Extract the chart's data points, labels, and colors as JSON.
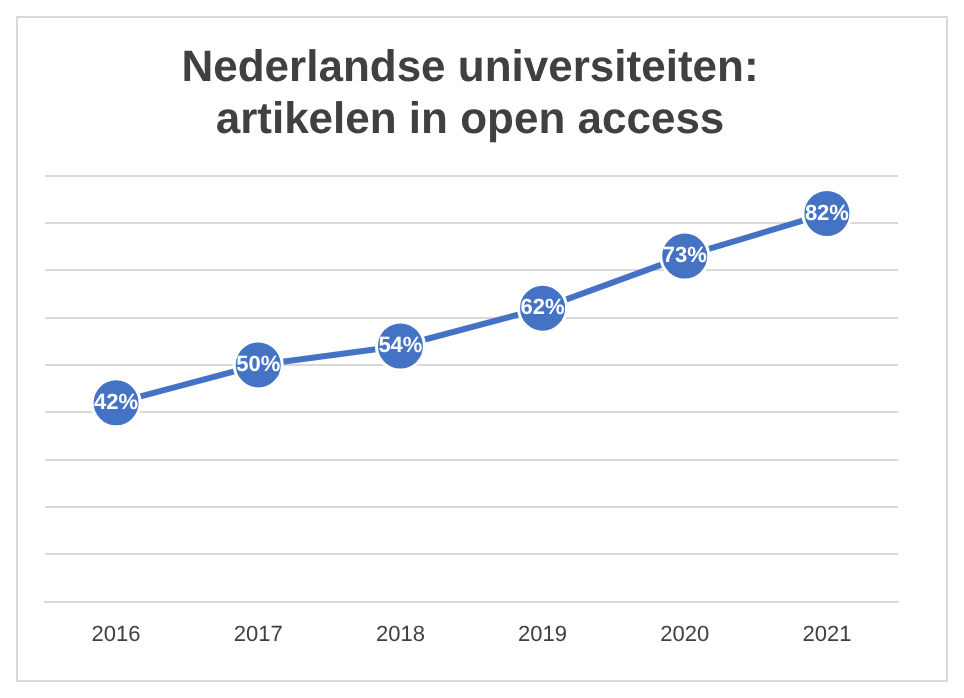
{
  "chart_data": {
    "type": "line",
    "title": "Nederlandse universiteiten:\nartikelen in open access",
    "categories": [
      "2016",
      "2017",
      "2018",
      "2019",
      "2020",
      "2021"
    ],
    "series": [
      {
        "color": "#4472c4",
        "values": [
          42,
          50,
          54,
          62,
          73,
          82
        ],
        "value_labels": [
          "42%",
          "50%",
          "54%",
          "62%",
          "73%",
          "82%"
        ]
      }
    ],
    "grid": "y",
    "tick_labels": "x",
    "marker": "circle",
    "line_style": "solid"
  }
}
